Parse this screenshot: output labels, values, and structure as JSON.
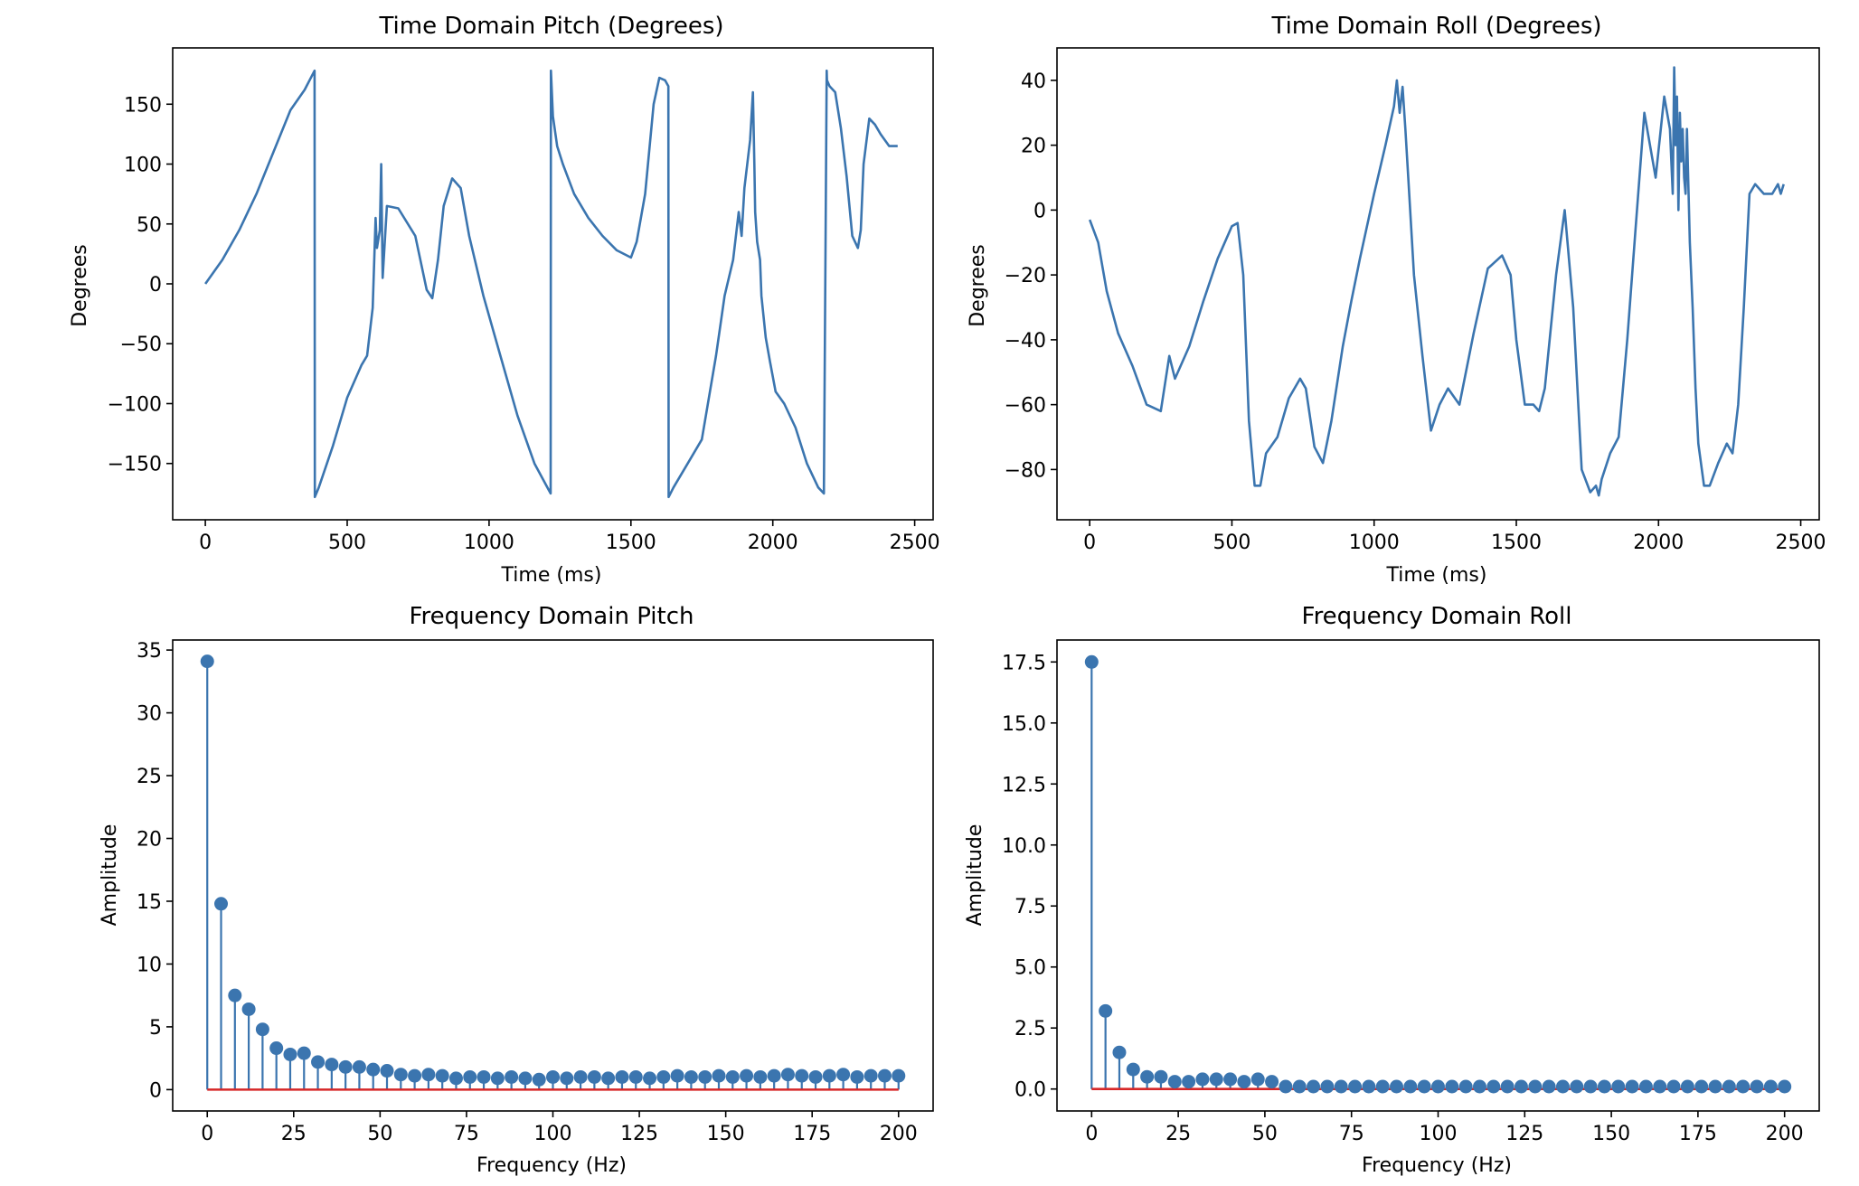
{
  "colors": {
    "series": "#3b75af",
    "baseline": "#d62728"
  },
  "chart_data": [
    {
      "type": "line",
      "title": "Time Domain Pitch (Degrees)",
      "xlabel": "Time (ms)",
      "ylabel": "Degrees",
      "xlim": [
        -115,
        2565
      ],
      "ylim": [
        -197,
        197
      ],
      "xticks": [
        0,
        500,
        1000,
        1500,
        2000,
        2500
      ],
      "xtick_labels": [
        "0",
        "500",
        "1000",
        "1500",
        "2000",
        "2500"
      ],
      "yticks": [
        150,
        100,
        50,
        0,
        -50,
        -100,
        -150
      ],
      "ytick_labels": [
        "150",
        "100",
        "50",
        "0",
        "−50",
        "−100",
        "−150"
      ],
      "x": [
        0,
        60,
        120,
        180,
        240,
        300,
        350,
        385,
        386,
        400,
        450,
        500,
        550,
        570,
        590,
        600,
        605,
        615,
        620,
        625,
        640,
        680,
        740,
        780,
        800,
        820,
        840,
        870,
        900,
        930,
        980,
        1040,
        1100,
        1160,
        1210,
        1217,
        1218,
        1225,
        1240,
        1260,
        1300,
        1350,
        1400,
        1450,
        1500,
        1520,
        1550,
        1580,
        1600,
        1620,
        1632,
        1633,
        1650,
        1700,
        1750,
        1800,
        1830,
        1860,
        1880,
        1890,
        1900,
        1920,
        1930,
        1935,
        1938,
        1945,
        1955,
        1960,
        1975,
        1990,
        2010,
        2040,
        2080,
        2120,
        2160,
        2180,
        2190,
        2191,
        2200,
        2220,
        2240,
        2260,
        2280,
        2300,
        2310,
        2320,
        2340,
        2360,
        2380,
        2410,
        2440
      ],
      "y": [
        0,
        20,
        45,
        75,
        110,
        145,
        162,
        178,
        -178,
        -170,
        -135,
        -95,
        -68,
        -60,
        -20,
        55,
        30,
        45,
        100,
        5,
        65,
        63,
        40,
        -5,
        -12,
        20,
        65,
        88,
        80,
        40,
        -10,
        -60,
        -110,
        -150,
        -172,
        -175,
        178,
        140,
        115,
        100,
        75,
        55,
        40,
        28,
        22,
        35,
        75,
        150,
        172,
        170,
        165,
        -178,
        -170,
        -150,
        -130,
        -60,
        -10,
        20,
        60,
        40,
        80,
        120,
        160,
        100,
        60,
        35,
        20,
        -10,
        -45,
        -65,
        -90,
        -100,
        -120,
        -150,
        -170,
        -175,
        178,
        170,
        165,
        160,
        130,
        90,
        40,
        30,
        45,
        100,
        138,
        133,
        125,
        115,
        115
      ]
    },
    {
      "type": "line",
      "title": "Time Domain Roll (Degrees)",
      "xlabel": "Time (ms)",
      "ylabel": "Degrees",
      "xlim": [
        -115,
        2565
      ],
      "ylim": [
        -95.5,
        50
      ],
      "xticks": [
        0,
        500,
        1000,
        1500,
        2000,
        2500
      ],
      "xtick_labels": [
        "0",
        "500",
        "1000",
        "1500",
        "2000",
        "2500"
      ],
      "yticks": [
        40,
        20,
        0,
        -20,
        -40,
        -60,
        -80
      ],
      "ytick_labels": [
        "40",
        "20",
        "0",
        "−20",
        "−40",
        "−60",
        "−80"
      ],
      "x": [
        0,
        30,
        60,
        100,
        150,
        200,
        250,
        280,
        300,
        320,
        350,
        400,
        450,
        500,
        520,
        540,
        560,
        580,
        600,
        620,
        660,
        700,
        740,
        760,
        790,
        820,
        850,
        890,
        920,
        950,
        1000,
        1040,
        1070,
        1080,
        1090,
        1100,
        1110,
        1120,
        1140,
        1170,
        1200,
        1230,
        1260,
        1300,
        1350,
        1400,
        1450,
        1480,
        1500,
        1530,
        1560,
        1580,
        1600,
        1640,
        1670,
        1700,
        1730,
        1760,
        1780,
        1790,
        1800,
        1830,
        1860,
        1890,
        1920,
        1950,
        1990,
        2020,
        2040,
        2050,
        2055,
        2060,
        2065,
        2070,
        2075,
        2080,
        2085,
        2090,
        2095,
        2100,
        2110,
        2120,
        2130,
        2140,
        2160,
        2180,
        2210,
        2240,
        2260,
        2280,
        2300,
        2320,
        2340,
        2370,
        2400,
        2420,
        2430,
        2440
      ],
      "y": [
        -3,
        -10,
        -25,
        -38,
        -48,
        -60,
        -62,
        -45,
        -52,
        -48,
        -42,
        -28,
        -15,
        -5,
        -4,
        -20,
        -65,
        -85,
        -85,
        -75,
        -70,
        -58,
        -52,
        -55,
        -73,
        -78,
        -65,
        -42,
        -28,
        -15,
        5,
        20,
        32,
        40,
        30,
        38,
        25,
        10,
        -20,
        -45,
        -68,
        -60,
        -55,
        -60,
        -38,
        -18,
        -14,
        -20,
        -40,
        -60,
        -60,
        -62,
        -55,
        -20,
        0,
        -30,
        -80,
        -87,
        -85,
        -88,
        -83,
        -75,
        -70,
        -40,
        -5,
        30,
        10,
        35,
        25,
        5,
        44,
        20,
        35,
        0,
        30,
        15,
        25,
        10,
        5,
        25,
        -10,
        -30,
        -55,
        -72,
        -85,
        -85,
        -78,
        -72,
        -75,
        -60,
        -30,
        5,
        8,
        5,
        5,
        8,
        5,
        8
      ]
    },
    {
      "type": "stem",
      "title": "Frequency Domain Pitch",
      "xlabel": "Frequency (Hz)",
      "ylabel": "Amplitude",
      "xlim": [
        -10,
        210
      ],
      "ylim": [
        -1.7,
        35.8
      ],
      "xticks": [
        0,
        25,
        50,
        75,
        100,
        125,
        150,
        175,
        200
      ],
      "xtick_labels": [
        "0",
        "25",
        "50",
        "75",
        "100",
        "125",
        "150",
        "175",
        "200"
      ],
      "yticks": [
        35,
        30,
        25,
        20,
        15,
        10,
        5,
        0
      ],
      "ytick_labels": [
        "35",
        "30",
        "25",
        "20",
        "15",
        "10",
        "5",
        "0"
      ],
      "x": [
        0,
        4,
        8,
        12,
        16,
        20,
        24,
        28,
        32,
        36,
        40,
        44,
        48,
        52,
        56,
        60,
        64,
        68,
        72,
        76,
        80,
        84,
        88,
        92,
        96,
        100,
        104,
        108,
        112,
        116,
        120,
        124,
        128,
        132,
        136,
        140,
        144,
        148,
        152,
        156,
        160,
        164,
        168,
        172,
        176,
        180,
        184,
        188,
        192,
        196,
        200
      ],
      "values": [
        34.1,
        14.8,
        7.5,
        6.4,
        4.8,
        3.3,
        2.8,
        2.9,
        2.2,
        2.0,
        1.8,
        1.8,
        1.6,
        1.5,
        1.2,
        1.1,
        1.2,
        1.1,
        0.9,
        1.0,
        1.0,
        0.9,
        1.0,
        0.9,
        0.8,
        1.0,
        0.9,
        1.0,
        1.0,
        0.9,
        1.0,
        1.0,
        0.9,
        1.0,
        1.1,
        1.0,
        1.0,
        1.1,
        1.0,
        1.1,
        1.0,
        1.1,
        1.2,
        1.1,
        1.0,
        1.1,
        1.2,
        1.0,
        1.1,
        1.1,
        1.1
      ]
    },
    {
      "type": "stem",
      "title": "Frequency Domain Roll",
      "xlabel": "Frequency (Hz)",
      "ylabel": "Amplitude",
      "xlim": [
        -10,
        210
      ],
      "ylim": [
        -0.9,
        18.4
      ],
      "xticks": [
        0,
        25,
        50,
        75,
        100,
        125,
        150,
        175,
        200
      ],
      "xtick_labels": [
        "0",
        "25",
        "50",
        "75",
        "100",
        "125",
        "150",
        "175",
        "200"
      ],
      "yticks": [
        17.5,
        15.0,
        12.5,
        10.0,
        7.5,
        5.0,
        2.5,
        0.0
      ],
      "ytick_labels": [
        "17.5",
        "15.0",
        "12.5",
        "10.0",
        "7.5",
        "5.0",
        "2.5",
        "0.0"
      ],
      "x": [
        0,
        4,
        8,
        12,
        16,
        20,
        24,
        28,
        32,
        36,
        40,
        44,
        48,
        52,
        56,
        60,
        64,
        68,
        72,
        76,
        80,
        84,
        88,
        92,
        96,
        100,
        104,
        108,
        112,
        116,
        120,
        124,
        128,
        132,
        136,
        140,
        144,
        148,
        152,
        156,
        160,
        164,
        168,
        172,
        176,
        180,
        184,
        188,
        192,
        196,
        200
      ],
      "values": [
        17.5,
        3.2,
        1.5,
        0.8,
        0.5,
        0.5,
        0.3,
        0.3,
        0.4,
        0.4,
        0.4,
        0.3,
        0.4,
        0.3,
        0.1,
        0.1,
        0.1,
        0.1,
        0.1,
        0.1,
        0.1,
        0.1,
        0.1,
        0.1,
        0.1,
        0.1,
        0.1,
        0.1,
        0.1,
        0.1,
        0.1,
        0.1,
        0.1,
        0.1,
        0.1,
        0.1,
        0.1,
        0.1,
        0.1,
        0.1,
        0.1,
        0.1,
        0.1,
        0.1,
        0.1,
        0.1,
        0.1,
        0.1,
        0.1,
        0.1,
        0.1
      ]
    }
  ]
}
